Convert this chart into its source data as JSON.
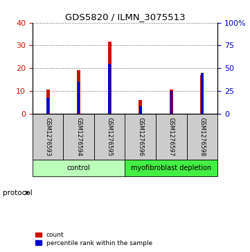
{
  "title": "GDS5820 / ILMN_3075513",
  "samples": [
    "GSM1276593",
    "GSM1276594",
    "GSM1276595",
    "GSM1276596",
    "GSM1276597",
    "GSM1276598"
  ],
  "count_values": [
    10.5,
    19.0,
    31.5,
    6.0,
    10.5,
    17.0
  ],
  "percentile_values": [
    17,
    35,
    55,
    8,
    25,
    45
  ],
  "left_ylim": [
    0,
    40
  ],
  "right_ylim": [
    0,
    100
  ],
  "left_yticks": [
    0,
    10,
    20,
    30,
    40
  ],
  "right_yticks": [
    0,
    25,
    50,
    75,
    100
  ],
  "right_yticklabels": [
    "0",
    "25",
    "50",
    "75",
    "100%"
  ],
  "count_color": "#cc1100",
  "percentile_color": "#0000cc",
  "groups": [
    {
      "label": "control",
      "indices": [
        0,
        1,
        2
      ],
      "color": "#bbffbb"
    },
    {
      "label": "myofibroblast depletion",
      "indices": [
        3,
        4,
        5
      ],
      "color": "#44ee44"
    }
  ],
  "protocol_label": "protocol",
  "legend_count": "count",
  "legend_percentile": "percentile rank within the sample",
  "tick_label_area_color": "#cccccc",
  "dotted_line_color": "#555555"
}
